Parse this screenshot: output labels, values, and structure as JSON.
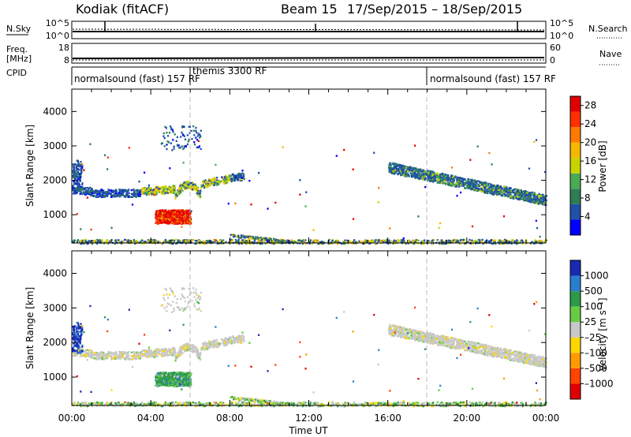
{
  "header": {
    "station": "Kodiak (fitACF)",
    "beam": "Beam 15",
    "date_range": "17/Sep/2015 – 18/Sep/2015"
  },
  "strip_labels": {
    "nsky": "N.Sky",
    "nsearch": "N.Search",
    "freq": "Freq.",
    "freq_unit": "[MHz]",
    "nave": "Nave",
    "cpid": "CPID",
    "nsky_ticks": [
      "10^5",
      "10^0"
    ],
    "nsearch_ticks": [
      "10^5",
      "10^0"
    ],
    "freq_ticks": [
      "18",
      "8"
    ],
    "nave_ticks": [
      "60",
      "0"
    ]
  },
  "cpid_segments": [
    {
      "label": "normalsound (fast) 157 RF",
      "start_hour": 0
    },
    {
      "label": "themis 3300 RF",
      "start_hour": 6
    },
    {
      "label": "normalsound (fast) 157 RF",
      "start_hour": 18
    }
  ],
  "chart_data": [
    {
      "type": "heatmap",
      "panel": "power",
      "ylabel": "Slant Range [km]",
      "xlabel": "Time UT",
      "x_ticks": [
        "00:00",
        "04:00",
        "08:00",
        "12:00",
        "16:00",
        "20:00",
        "00:00"
      ],
      "xlim_hours": [
        0,
        24
      ],
      "ylim_km": [
        180,
        4650
      ],
      "y_ticks": [
        1000,
        2000,
        3000,
        4000
      ],
      "colorbar": {
        "label": "Power [dB]",
        "ticks": [
          4,
          8,
          12,
          16,
          20,
          24,
          28
        ],
        "range": [
          0,
          30
        ],
        "colors": [
          "#0000ff",
          "#2050a8",
          "#2e7d55",
          "#4aaa55",
          "#c8d400",
          "#f5b800",
          "#ff7a00",
          "#ff3000",
          "#e00000"
        ]
      },
      "features": [
        {
          "hours": [
            0.0,
            10.0
          ],
          "range_km": [
            1500,
            2200
          ],
          "power_db": 6,
          "desc": "main band"
        },
        {
          "hours": [
            4.2,
            6.0
          ],
          "range_km": [
            750,
            1150
          ],
          "power_db": 28,
          "desc": "strong patch"
        },
        {
          "hours": [
            16.0,
            24.0
          ],
          "range_km": [
            1300,
            2600
          ],
          "power_db": 7,
          "desc": "descending band"
        }
      ]
    },
    {
      "type": "heatmap",
      "panel": "velocity",
      "ylabel": "Slant Range [km]",
      "xlabel": "Time UT",
      "x_ticks": [
        "00:00",
        "04:00",
        "08:00",
        "12:00",
        "16:00",
        "20:00",
        "00:00"
      ],
      "xlim_hours": [
        0,
        24
      ],
      "ylim_km": [
        180,
        4650
      ],
      "y_ticks": [
        1000,
        2000,
        3000,
        4000
      ],
      "colorbar": {
        "label": "Velocity [m s⁻¹]",
        "ticks": [
          "1000",
          "500",
          "100",
          "25",
          "–25",
          "–100",
          "–500",
          "–1000"
        ],
        "colors": [
          "#1a2ab0",
          "#2a7ed0",
          "#2c9a4a",
          "#66cc44",
          "#c8c8c8",
          "#ffd700",
          "#ff9b00",
          "#ff4500",
          "#e00000"
        ]
      },
      "features": [
        {
          "hours": [
            0.0,
            10.0
          ],
          "range_km": [
            1500,
            2200
          ],
          "velocity_ms": 0,
          "desc": "main band"
        },
        {
          "hours": [
            4.2,
            6.0
          ],
          "range_km": [
            750,
            1150
          ],
          "velocity_ms": 150,
          "desc": "green patch"
        },
        {
          "hours": [
            16.0,
            24.0
          ],
          "range_km": [
            1300,
            2600
          ],
          "velocity_ms": 0,
          "desc": "descending band"
        }
      ]
    }
  ]
}
